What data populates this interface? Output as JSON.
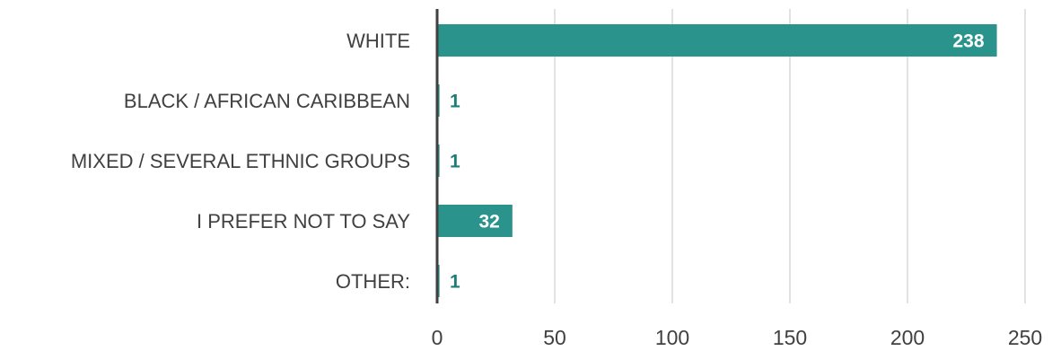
{
  "chart_data": {
    "type": "bar",
    "orientation": "horizontal",
    "title": "",
    "xlabel": "",
    "ylabel": "",
    "categories": [
      "WHITE",
      "BLACK / AFRICAN CARIBBEAN",
      "MIXED / SEVERAL ETHNIC GROUPS",
      "I PREFER NOT TO SAY",
      "OTHER:"
    ],
    "values": [
      238,
      1,
      1,
      32,
      1
    ],
    "xlim": [
      0,
      250
    ],
    "x_ticks": [
      0,
      50,
      100,
      150,
      200,
      250
    ],
    "x_tick_labels": [
      "0",
      "50",
      "100",
      "150",
      "200",
      "250"
    ],
    "data_labels": [
      "238",
      "1",
      "1",
      "32",
      "1"
    ],
    "grid": "vertical",
    "legend": "none",
    "colors": {
      "bar": "#2A948C",
      "label_inside": "#FFFFFF",
      "label_outside": "#1E7C76",
      "axis": "#404040",
      "grid": "#D9D9D9",
      "text": "#404040"
    }
  }
}
